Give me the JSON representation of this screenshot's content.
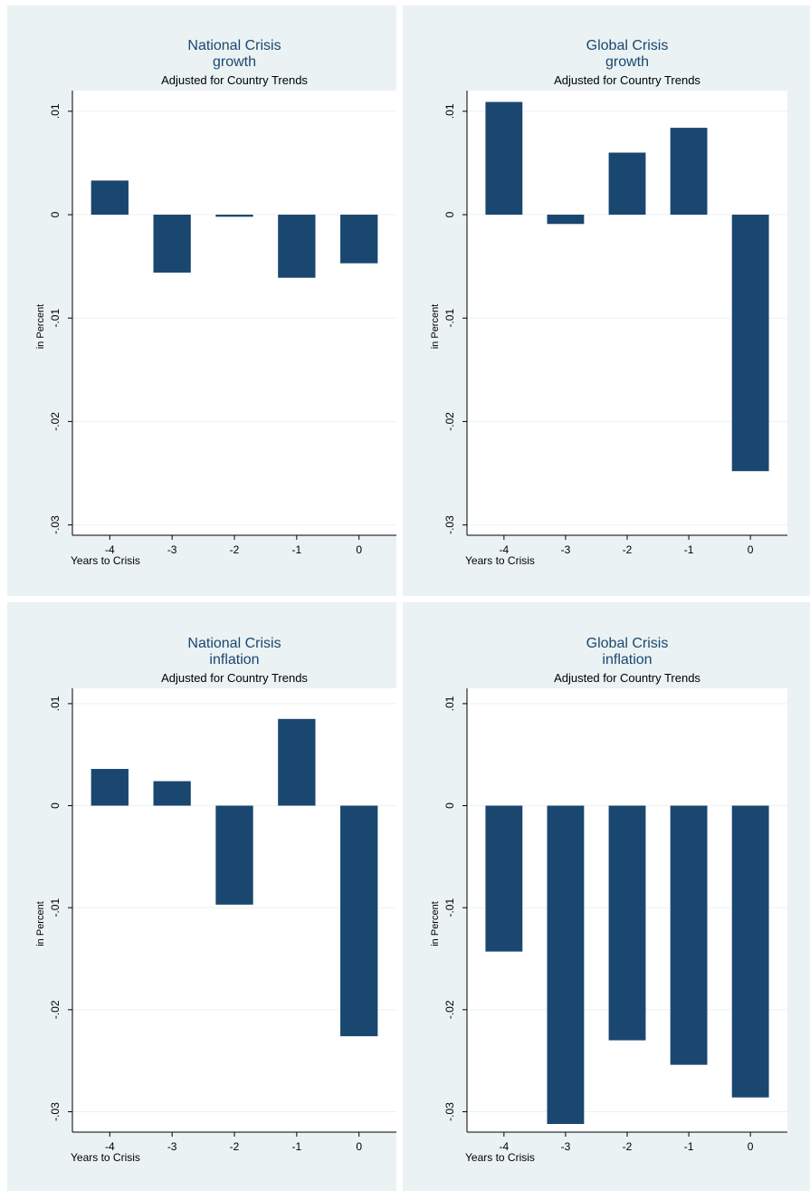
{
  "chart_data": [
    {
      "type": "bar",
      "title": "National Crisis",
      "title2": "growth",
      "subtitle": "Adjusted for Country Trends",
      "xlabel": "Years to Crisis",
      "ylabel": "in Percent",
      "categories": [
        "-4",
        "-3",
        "-2",
        "-1",
        "0"
      ],
      "values": [
        0.0033,
        -0.0056,
        -0.0002,
        -0.0061,
        -0.0047
      ],
      "ylim": [
        -0.031,
        0.012
      ],
      "yticks": [
        0.01,
        0,
        -0.01,
        -0.02,
        -0.03
      ],
      "ytick_labels": [
        ".01",
        "0",
        "-.01",
        "-.02",
        "-.03"
      ],
      "grid": true,
      "bar_color": "#1a476f"
    },
    {
      "type": "bar",
      "title": "Global Crisis",
      "title2": "growth",
      "subtitle": "Adjusted for Country Trends",
      "xlabel": "Years to Crisis",
      "ylabel": "in Percent",
      "categories": [
        "-4",
        "-3",
        "-2",
        "-1",
        "0"
      ],
      "values": [
        0.0109,
        -0.0009,
        0.006,
        0.0084,
        -0.0248
      ],
      "ylim": [
        -0.031,
        0.012
      ],
      "yticks": [
        0.01,
        0,
        -0.01,
        -0.02,
        -0.03
      ],
      "ytick_labels": [
        ".01",
        "0",
        "-.01",
        "-.02",
        "-.03"
      ],
      "grid": true,
      "bar_color": "#1a476f"
    },
    {
      "type": "bar",
      "title": "National Crisis",
      "title2": "inflation",
      "subtitle": "Adjusted for Country Trends",
      "xlabel": "Years to Crisis",
      "ylabel": "in Percent",
      "categories": [
        "-4",
        "-3",
        "-2",
        "-1",
        "0"
      ],
      "values": [
        0.0036,
        0.0024,
        -0.0097,
        0.0085,
        -0.0226
      ],
      "ylim": [
        -0.032,
        0.0115
      ],
      "yticks": [
        0.01,
        0,
        -0.01,
        -0.02,
        -0.03
      ],
      "ytick_labels": [
        ".01",
        "0",
        "-.01",
        "-.02",
        "-.03"
      ],
      "grid": true,
      "bar_color": "#1a476f"
    },
    {
      "type": "bar",
      "title": "Global Crisis",
      "title2": "inflation",
      "subtitle": "Adjusted for Country Trends",
      "xlabel": "Years to Crisis",
      "ylabel": "in Percent",
      "categories": [
        "-4",
        "-3",
        "-2",
        "-1",
        "0"
      ],
      "values": [
        -0.0143,
        -0.0312,
        -0.023,
        -0.0254,
        -0.0286
      ],
      "ylim": [
        -0.032,
        0.0115
      ],
      "yticks": [
        0.01,
        0,
        -0.01,
        -0.02,
        -0.03
      ],
      "ytick_labels": [
        ".01",
        "0",
        "-.01",
        "-.02",
        "-.03"
      ],
      "grid": true,
      "bar_color": "#1a476f"
    }
  ]
}
